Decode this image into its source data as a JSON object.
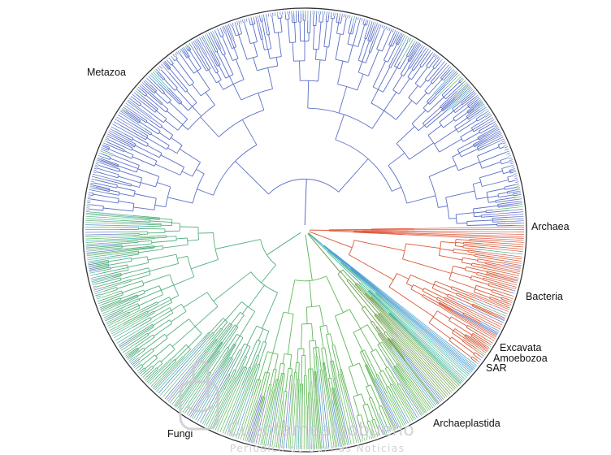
{
  "clades": [
    {
      "id": "metazoa",
      "label": "Metazoa"
    },
    {
      "id": "archaea",
      "label": "Archaea"
    },
    {
      "id": "bacteria",
      "label": "Bacteria"
    },
    {
      "id": "excavata",
      "label": "Excavata"
    },
    {
      "id": "amoebozoa",
      "label": "Amoebozoa"
    },
    {
      "id": "sar",
      "label": "SAR"
    },
    {
      "id": "archaeplastida",
      "label": "Archaeplastida"
    },
    {
      "id": "fungi",
      "label": "Fungi"
    }
  ],
  "watermark": {
    "title": "Cuentamealgobueno",
    "subtitle": "Periodico de Buenas Noticias"
  },
  "colors": {
    "ring": "#333333",
    "bacteria_red": "#d65a3a",
    "archaea_red": "#e0553a",
    "metazoa_blue": "#5b6fc6",
    "teal": "#3fb3b0",
    "green": "#5cbf55",
    "yellow_green": "#b5c24a",
    "orange": "#e39a3a"
  },
  "sectors": [
    {
      "clade": "archaea",
      "start": -1,
      "end": 3,
      "color": "#e0553a"
    },
    {
      "clade": "bacteria",
      "start": 3,
      "end": 38,
      "color": "#d65a3a"
    },
    {
      "clade": "excavata",
      "start": 38,
      "end": 41,
      "color": "#4a9fd0"
    },
    {
      "clade": "amoebozoa",
      "start": 41,
      "end": 45,
      "color": "#47b89a"
    },
    {
      "clade": "sar",
      "start": 45,
      "end": 55,
      "color": "#6c9f4c"
    },
    {
      "clade": "archaeplastida",
      "start": 55,
      "end": 108,
      "color": "#60b85a"
    },
    {
      "clade": "fungi",
      "start": 108,
      "end": 185,
      "color": "#55b07f"
    },
    {
      "clade": "metazoa",
      "start": 185,
      "end": 359,
      "color": "#5b6fc6"
    }
  ]
}
